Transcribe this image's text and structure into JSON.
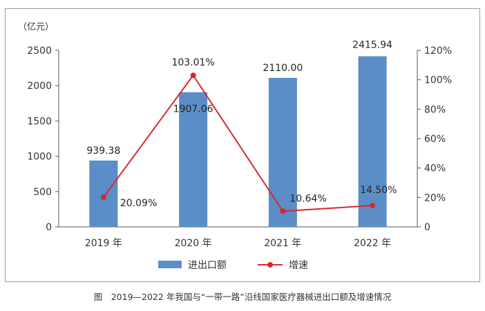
{
  "chart_data": {
    "type": "bar",
    "yunit_label": "（亿元）",
    "categories": [
      "2019 年",
      "2020 年",
      "2021 年",
      "2022 年"
    ],
    "series": [
      {
        "name": "进出口额",
        "type": "bar",
        "axis": "left",
        "color": "#5b8ec6",
        "values": [
          939.38,
          1907.06,
          2110.0,
          2415.94
        ],
        "labels": [
          "939.38",
          "1907.06",
          "2110.00",
          "2415.94"
        ]
      },
      {
        "name": "增速",
        "type": "line",
        "axis": "right",
        "color": "#d42a2f",
        "values": [
          20.09,
          103.01,
          10.64,
          14.5
        ],
        "labels": [
          "20.09%",
          "103.01%",
          "10.64%",
          "14.50%"
        ]
      }
    ],
    "y_left": {
      "min": 0,
      "max": 2500,
      "ticks": [
        "0",
        "500",
        "1000",
        "1500",
        "2000",
        "2500"
      ],
      "tick_values": [
        0,
        500,
        1000,
        1500,
        2000,
        2500
      ]
    },
    "y_right": {
      "min": 0,
      "max": 120,
      "ticks": [
        "0",
        "20%",
        "40%",
        "60%",
        "80%",
        "100%",
        "120%"
      ],
      "tick_values": [
        0,
        20,
        40,
        60,
        80,
        100,
        120
      ]
    },
    "legend_position": "bottom",
    "grid": false
  },
  "caption": "图　2019—2022 年我国与“一带一路”沿线国家医疗器械进出口额及增速情况"
}
